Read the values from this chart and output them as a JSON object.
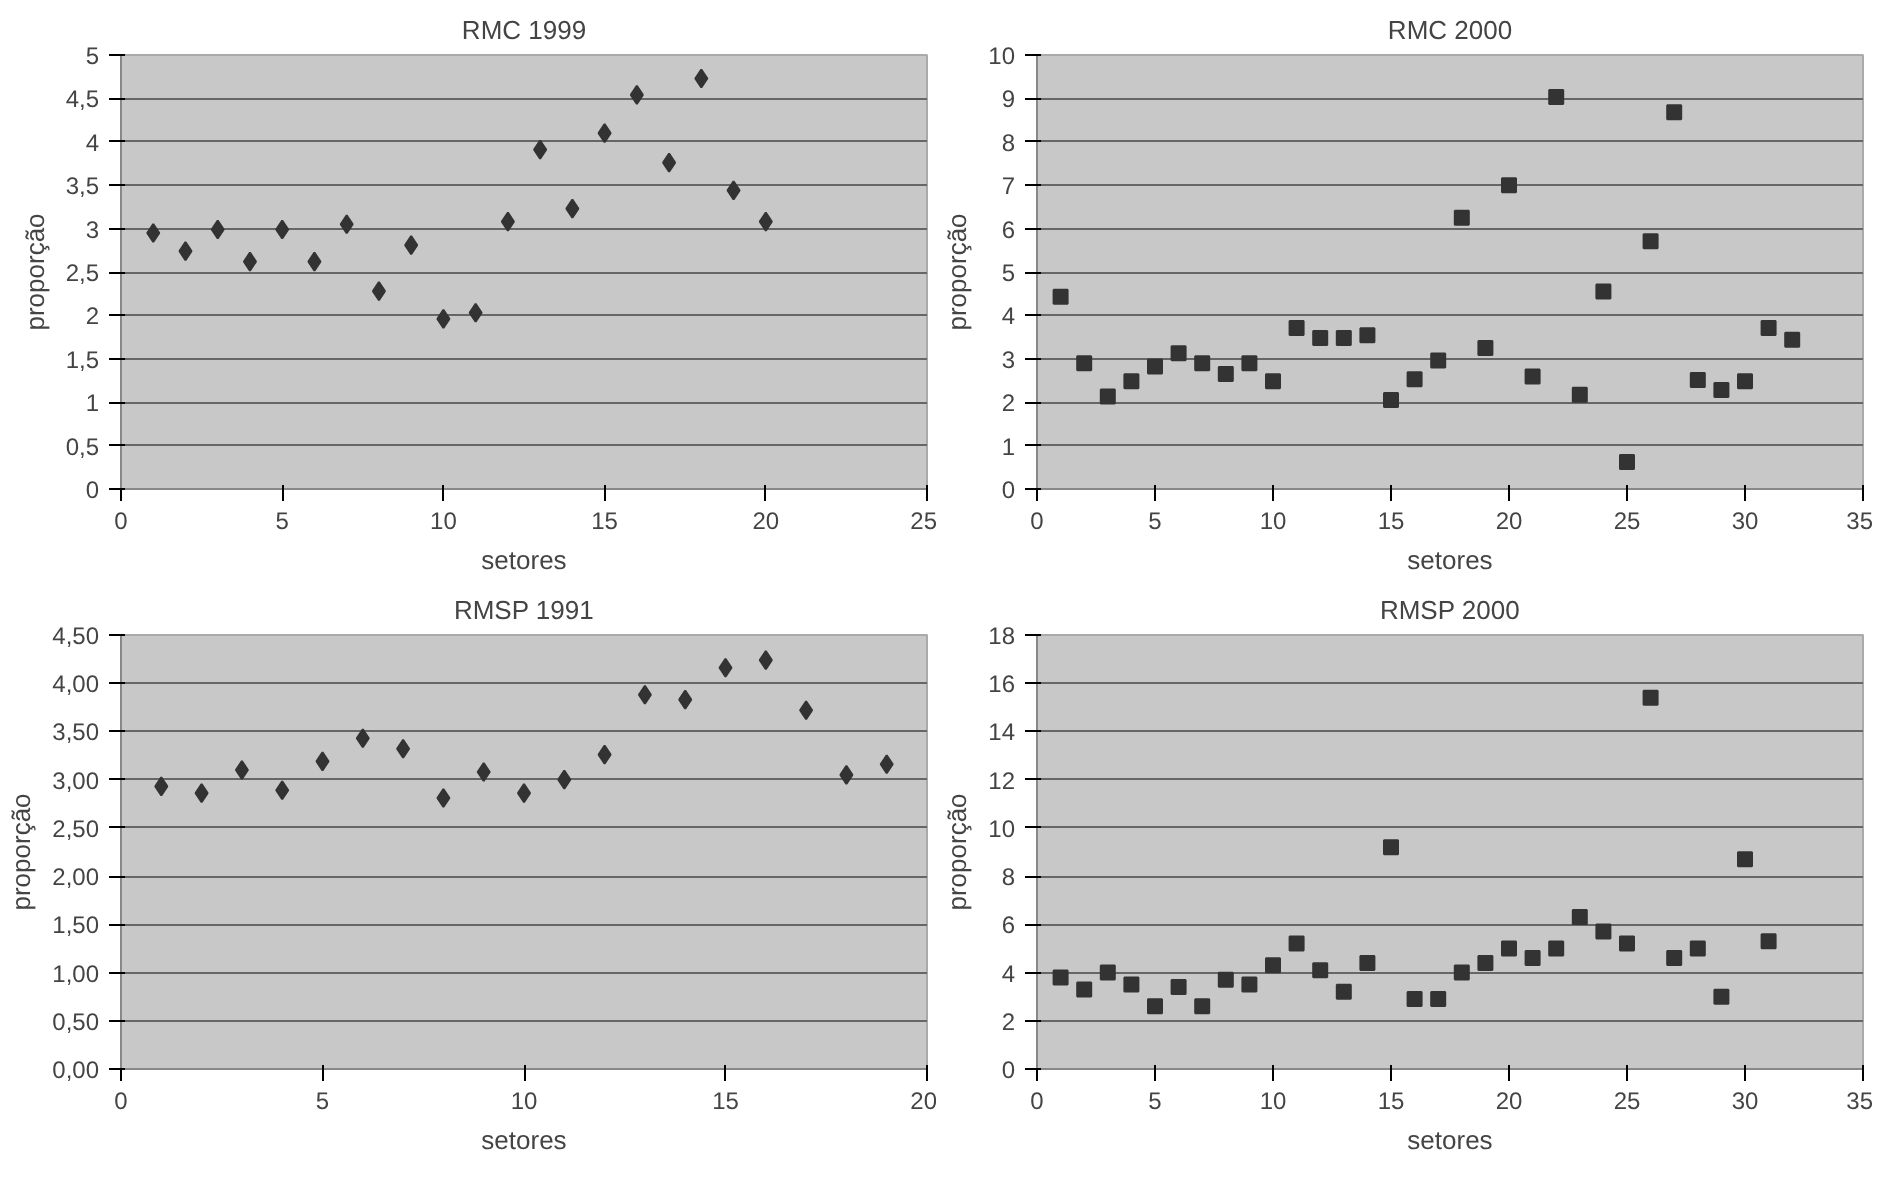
{
  "chart_data": [
    {
      "type": "scatter",
      "title": "RMC 1999",
      "xlabel": "setores",
      "ylabel": "proporção",
      "marker": "diamond",
      "grid": "y",
      "xlim": [
        0,
        25
      ],
      "xticks": [
        0,
        5,
        10,
        15,
        20,
        25
      ],
      "ylim": [
        0,
        5
      ],
      "yticks": [
        0,
        {
          "value": 0.5,
          "label": "0,5"
        },
        1,
        {
          "value": 1.5,
          "label": "1,5"
        },
        2,
        {
          "value": 2.5,
          "label": "2,5"
        },
        3,
        {
          "value": 3.5,
          "label": "3,5"
        },
        4,
        {
          "value": 4.5,
          "label": "4,5"
        },
        5
      ],
      "x": [
        1,
        2,
        3,
        4,
        5,
        6,
        7,
        8,
        9,
        10,
        11,
        12,
        13,
        14,
        15,
        16,
        17,
        18,
        19,
        20
      ],
      "series": [
        {
          "color": "#333333",
          "values": [
            2.95,
            2.74,
            2.99,
            2.62,
            2.99,
            2.62,
            3.05,
            2.28,
            2.81,
            1.96,
            2.03,
            3.08,
            3.91,
            3.23,
            4.1,
            4.54,
            3.76,
            4.73,
            3.44,
            3.08
          ]
        }
      ]
    },
    {
      "type": "scatter",
      "title": "RMC 2000",
      "xlabel": "setores",
      "ylabel": "proporção",
      "marker": "square",
      "grid": "y",
      "xlim": [
        0,
        35
      ],
      "xticks": [
        0,
        5,
        10,
        15,
        20,
        25,
        30,
        35
      ],
      "ylim": [
        0,
        10
      ],
      "yticks": [
        0,
        1,
        2,
        3,
        4,
        5,
        6,
        7,
        8,
        9,
        10
      ],
      "x": [
        1,
        2,
        3,
        4,
        5,
        6,
        7,
        8,
        9,
        10,
        11,
        12,
        13,
        14,
        15,
        16,
        17,
        18,
        19,
        20,
        21,
        22,
        23,
        24,
        25,
        26,
        27,
        28,
        29,
        30,
        31,
        32
      ],
      "series": [
        {
          "color": "#333333",
          "values": [
            4.43,
            2.9,
            2.13,
            2.48,
            2.82,
            3.13,
            2.9,
            2.65,
            2.9,
            2.48,
            3.71,
            3.48,
            3.48,
            3.54,
            2.05,
            2.53,
            2.96,
            6.25,
            3.25,
            7.0,
            2.59,
            9.03,
            2.17,
            4.55,
            0.62,
            5.71,
            8.68,
            2.51,
            2.28,
            2.48,
            3.71,
            3.44
          ]
        }
      ]
    },
    {
      "type": "scatter",
      "title": "RMSP 1991",
      "xlabel": "setores",
      "ylabel": "proporção",
      "marker": "diamond",
      "grid": "y",
      "xlim": [
        0,
        20
      ],
      "xticks": [
        0,
        5,
        10,
        15,
        20
      ],
      "ylim": [
        0,
        4.5
      ],
      "yticks": [
        {
          "value": 0,
          "label": "0,00"
        },
        {
          "value": 0.5,
          "label": "0,50"
        },
        {
          "value": 1,
          "label": "1,00"
        },
        {
          "value": 1.5,
          "label": "1,50"
        },
        {
          "value": 2,
          "label": "2,00"
        },
        {
          "value": 2.5,
          "label": "2,50"
        },
        {
          "value": 3,
          "label": "3,00"
        },
        {
          "value": 3.5,
          "label": "3,50"
        },
        {
          "value": 4,
          "label": "4,00"
        },
        {
          "value": 4.5,
          "label": "4,50"
        }
      ],
      "x": [
        1,
        2,
        3,
        4,
        5,
        6,
        7,
        8,
        9,
        10,
        11,
        12,
        13,
        14,
        15,
        16,
        17,
        18,
        19
      ],
      "series": [
        {
          "color": "#333333",
          "values": [
            2.93,
            2.86,
            3.1,
            2.89,
            3.19,
            3.43,
            3.32,
            2.81,
            3.08,
            2.86,
            3.0,
            3.26,
            3.88,
            3.83,
            4.16,
            4.24,
            3.72,
            3.05,
            3.16
          ]
        }
      ]
    },
    {
      "type": "scatter",
      "title": "RMSP 2000",
      "xlabel": "setores",
      "ylabel": "proporção",
      "marker": "square",
      "grid": "y",
      "xlim": [
        0,
        35
      ],
      "xticks": [
        0,
        5,
        10,
        15,
        20,
        25,
        30,
        35
      ],
      "ylim": [
        0,
        18
      ],
      "yticks": [
        0,
        2,
        4,
        6,
        8,
        10,
        12,
        14,
        16,
        18
      ],
      "x": [
        1,
        2,
        3,
        4,
        5,
        6,
        7,
        8,
        9,
        10,
        11,
        12,
        13,
        14,
        15,
        16,
        17,
        18,
        19,
        20,
        21,
        22,
        23,
        24,
        25,
        26,
        27,
        28,
        29,
        30,
        31
      ],
      "series": [
        {
          "color": "#333333",
          "values": [
            3.8,
            3.3,
            4.0,
            3.5,
            2.6,
            3.4,
            2.6,
            3.7,
            3.5,
            4.3,
            5.2,
            4.1,
            3.2,
            4.4,
            9.2,
            2.9,
            2.9,
            4.0,
            4.4,
            5.0,
            4.6,
            5.0,
            6.3,
            5.7,
            5.2,
            15.4,
            4.6,
            5.0,
            3.0,
            8.7,
            5.3
          ]
        }
      ]
    }
  ]
}
